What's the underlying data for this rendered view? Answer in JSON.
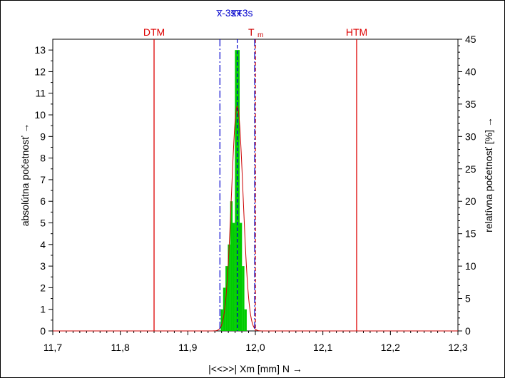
{
  "chart_data": {
    "type": "bar",
    "xlabel": "|<<>>|  Xm [mm]  N →",
    "ylabel_left": "absolútna početnosť →",
    "ylabel_right": "relatívna početnosť  [%] →",
    "xlim": [
      11.7,
      12.3
    ],
    "ylim_left": [
      0,
      13.5
    ],
    "ylim_right": [
      0,
      45
    ],
    "x_ticks": [
      11.7,
      11.8,
      11.9,
      12.0,
      12.1,
      12.2,
      12.3
    ],
    "x_tick_labels": [
      "11,7",
      "11,8",
      "11,9",
      "12,0",
      "12,1",
      "12,2",
      "12,3"
    ],
    "y_ticks_left": [
      0,
      1,
      2,
      3,
      4,
      5,
      6,
      7,
      8,
      9,
      10,
      11,
      12,
      13
    ],
    "y_ticks_right": [
      0,
      5,
      10,
      15,
      20,
      25,
      30,
      35,
      40,
      45
    ],
    "histogram": {
      "bin_width": 0.0035,
      "bins": [
        {
          "x": 11.9505,
          "count": 1
        },
        {
          "x": 11.954,
          "count": 2
        },
        {
          "x": 11.9575,
          "count": 3
        },
        {
          "x": 11.961,
          "count": 4
        },
        {
          "x": 11.9645,
          "count": 6
        },
        {
          "x": 11.968,
          "count": 5
        },
        {
          "x": 11.9715,
          "count": 13
        },
        {
          "x": 11.975,
          "count": 13
        },
        {
          "x": 11.9785,
          "count": 5
        },
        {
          "x": 11.982,
          "count": 3
        },
        {
          "x": 11.9855,
          "count": 1
        }
      ],
      "color": "#00cc00"
    },
    "normal_curve": {
      "mean": 11.9732,
      "sigma": 0.0086,
      "peak": 10.4,
      "color": "#cc0000"
    },
    "limit_lines": [
      {
        "label": "DTM",
        "x": 11.85,
        "color": "#dd0000"
      },
      {
        "label": "HTM",
        "x": 12.15,
        "color": "#dd0000"
      }
    ],
    "target_line": {
      "label": "T",
      "sub": "m",
      "x": 12.0,
      "color": "#cc0000"
    },
    "stat_lines": [
      {
        "label": "x̅-3s",
        "x": 11.9475
      },
      {
        "label": "x̅x̅",
        "x": 11.9732
      },
      {
        "label": "+3s",
        "x": 11.999
      }
    ],
    "stat_color": "#0000cc",
    "grid": false
  }
}
